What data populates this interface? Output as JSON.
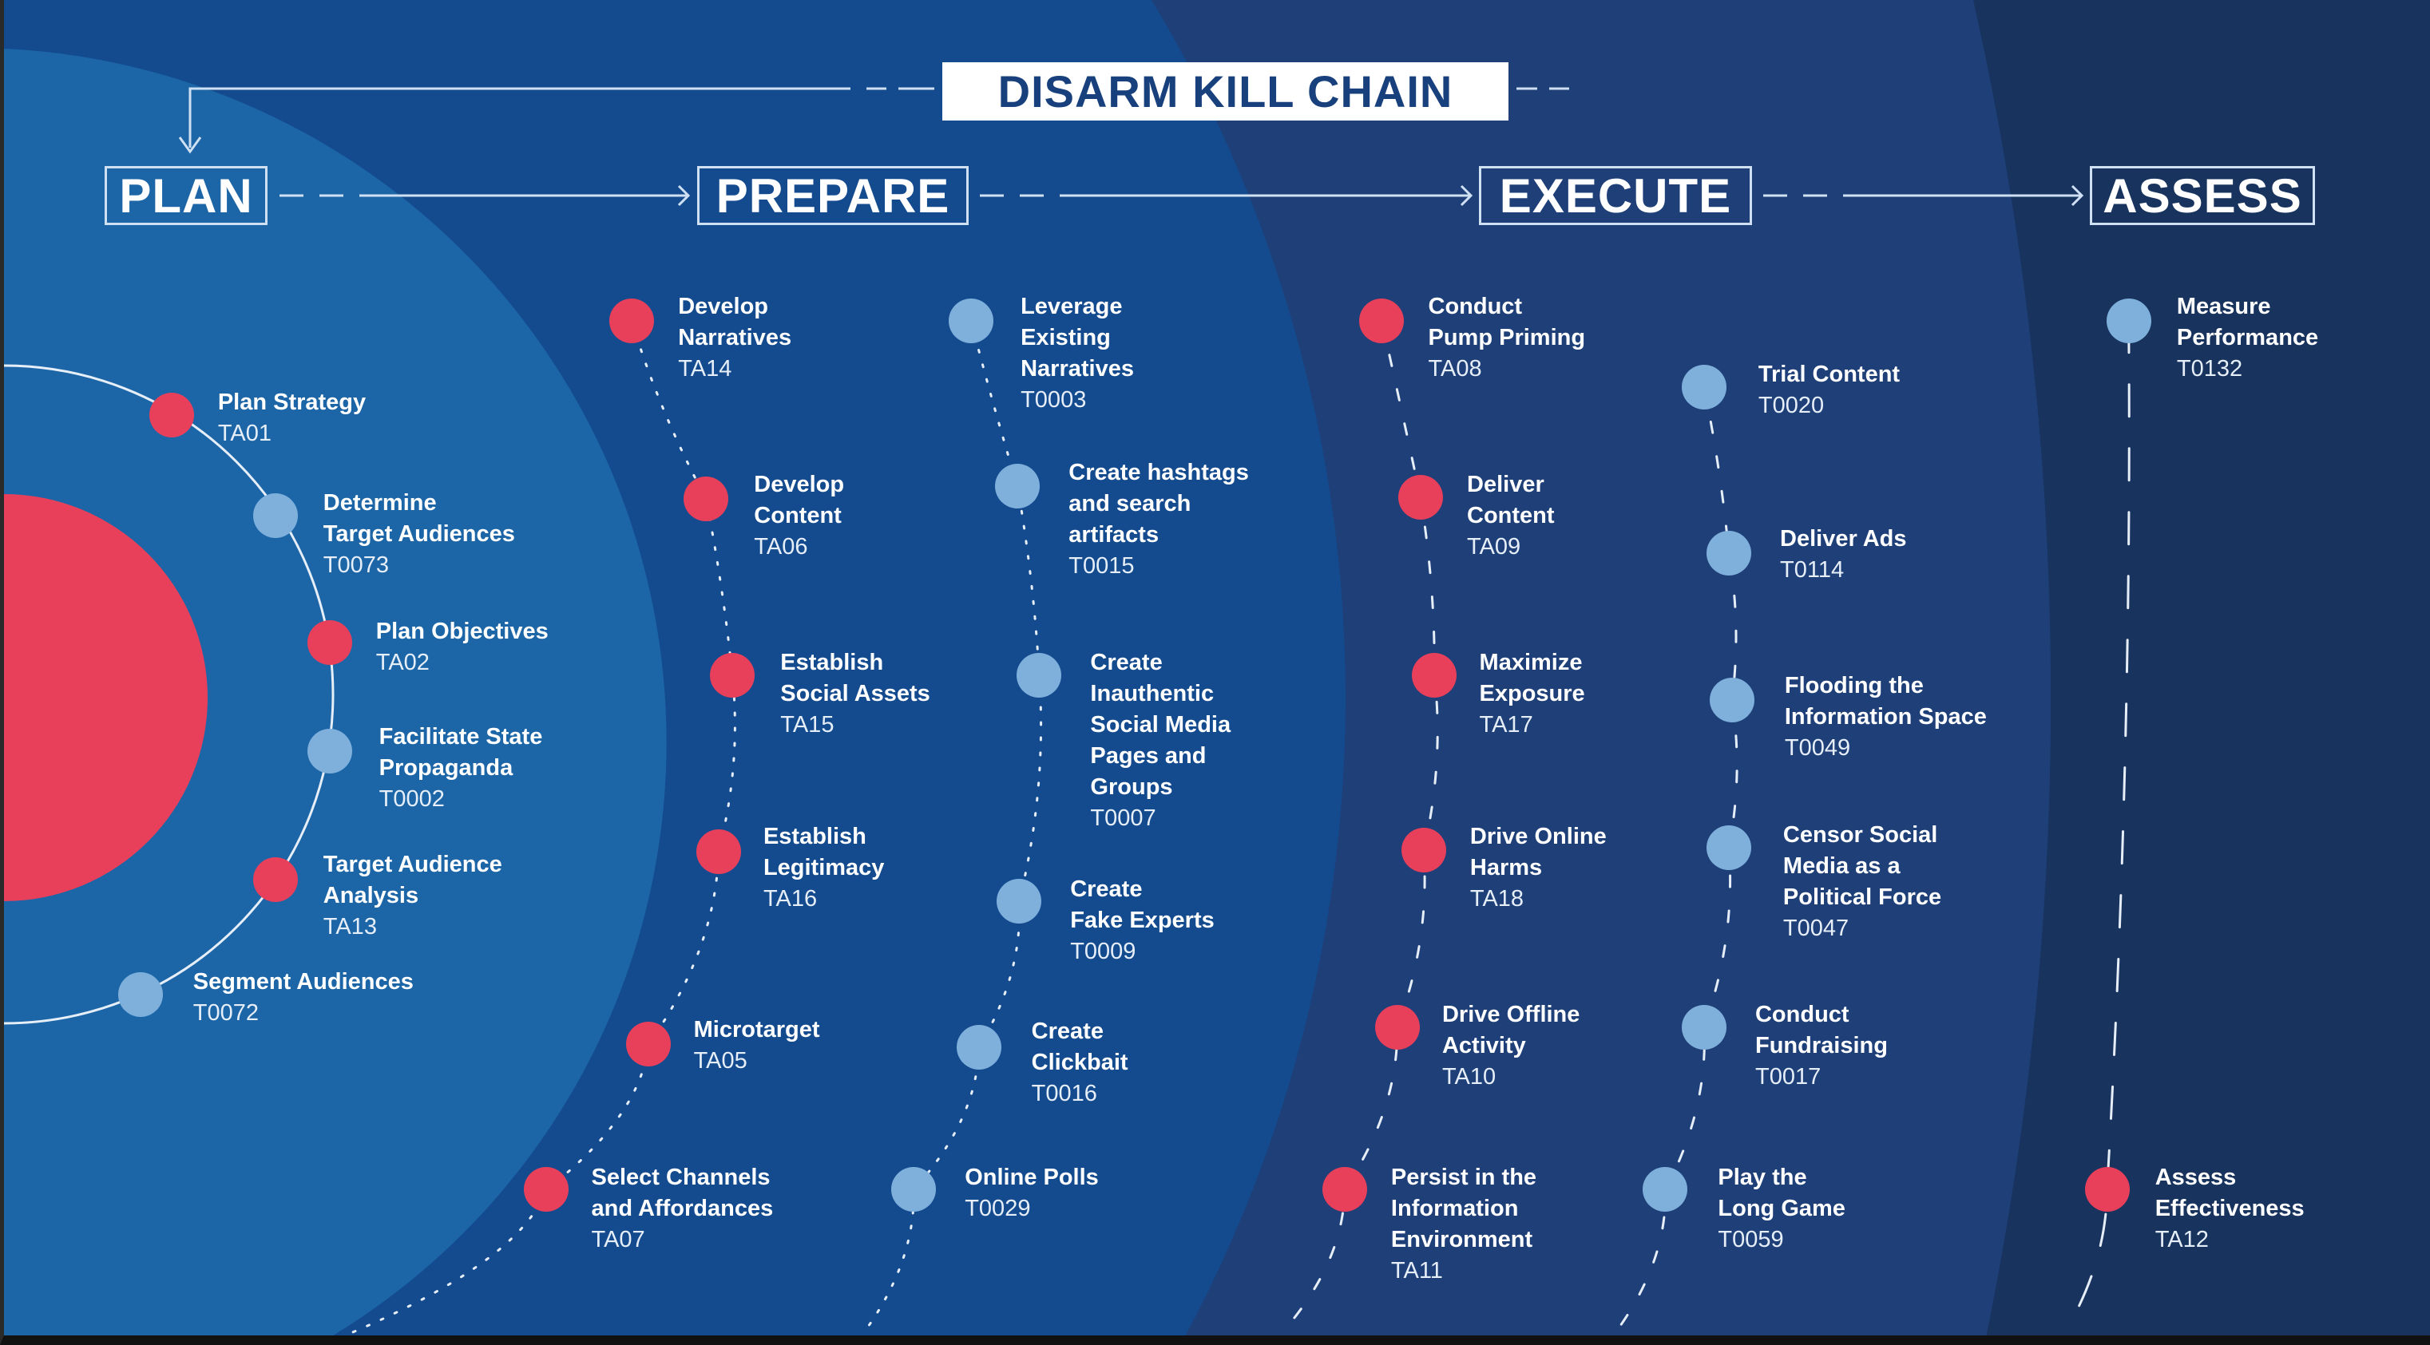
{
  "title": "DISARM KILL CHAIN",
  "stages": [
    {
      "label": "PLAN"
    },
    {
      "label": "PREPARE"
    },
    {
      "label": "EXECUTE"
    },
    {
      "label": "ASSESS"
    }
  ],
  "colors": {
    "red": "#e8405a",
    "blue": "#7fb0dc",
    "plan_bg": "#1c66a8",
    "prepare_bg": "#144b8f",
    "execute_bg": "#1e3f78",
    "assess_bg": "#17335e"
  },
  "columns": {
    "plan": [
      {
        "title": "Plan Strategy",
        "code": "TA01",
        "kind": "red"
      },
      {
        "title": "Determine\nTarget Audiences",
        "code": "T0073",
        "kind": "blue"
      },
      {
        "title": "Plan Objectives",
        "code": "TA02",
        "kind": "red"
      },
      {
        "title": "Facilitate State\nPropaganda",
        "code": "T0002",
        "kind": "blue"
      },
      {
        "title": "Target Audience\nAnalysis",
        "code": "TA13",
        "kind": "red"
      },
      {
        "title": "Segment Audiences",
        "code": "T0072",
        "kind": "blue"
      }
    ],
    "prepare_tactics": [
      {
        "title": "Develop\nNarratives",
        "code": "TA14",
        "kind": "red"
      },
      {
        "title": "Develop\nContent",
        "code": "TA06",
        "kind": "red"
      },
      {
        "title": "Establish\nSocial Assets",
        "code": "TA15",
        "kind": "red"
      },
      {
        "title": "Establish\nLegitimacy",
        "code": "TA16",
        "kind": "red"
      },
      {
        "title": "Microtarget",
        "code": "TA05",
        "kind": "red"
      },
      {
        "title": "Select Channels\nand Affordances",
        "code": "TA07",
        "kind": "red"
      }
    ],
    "prepare_techniques": [
      {
        "title": "Leverage\nExisting\nNarratives",
        "code": "T0003",
        "kind": "blue"
      },
      {
        "title": "Create hashtags\nand search\nartifacts",
        "code": "T0015",
        "kind": "blue"
      },
      {
        "title": "Create\nInauthentic\nSocial Media\nPages and\nGroups",
        "code": "T0007",
        "kind": "blue"
      },
      {
        "title": "Create\nFake Experts",
        "code": "T0009",
        "kind": "blue"
      },
      {
        "title": "Create\nClickbait",
        "code": "T0016",
        "kind": "blue"
      },
      {
        "title": "Online Polls",
        "code": "T0029",
        "kind": "blue"
      }
    ],
    "execute_tactics": [
      {
        "title": "Conduct\nPump Priming",
        "code": "TA08",
        "kind": "red"
      },
      {
        "title": "Deliver\nContent",
        "code": "TA09",
        "kind": "red"
      },
      {
        "title": "Maximize\nExposure",
        "code": "TA17",
        "kind": "red"
      },
      {
        "title": "Drive Online\nHarms",
        "code": "TA18",
        "kind": "red"
      },
      {
        "title": "Drive Offline\nActivity",
        "code": "TA10",
        "kind": "red"
      },
      {
        "title": "Persist in the\nInformation\nEnvironment",
        "code": "TA11",
        "kind": "red"
      }
    ],
    "execute_techniques": [
      {
        "title": "Trial Content",
        "code": "T0020",
        "kind": "blue"
      },
      {
        "title": "Deliver Ads",
        "code": "T0114",
        "kind": "blue"
      },
      {
        "title": "Flooding the\nInformation Space",
        "code": "T0049",
        "kind": "blue"
      },
      {
        "title": "Censor Social\nMedia as a\nPolitical Force",
        "code": "T0047",
        "kind": "blue"
      },
      {
        "title": "Conduct\nFundraising",
        "code": "T0017",
        "kind": "blue"
      },
      {
        "title": "Play the\nLong Game",
        "code": "T0059",
        "kind": "blue"
      }
    ],
    "assess": [
      {
        "title": "Measure\nPerformance",
        "code": "T0132",
        "kind": "blue"
      },
      {
        "title": "Assess\nEffectiveness",
        "code": "TA12",
        "kind": "red"
      }
    ]
  }
}
